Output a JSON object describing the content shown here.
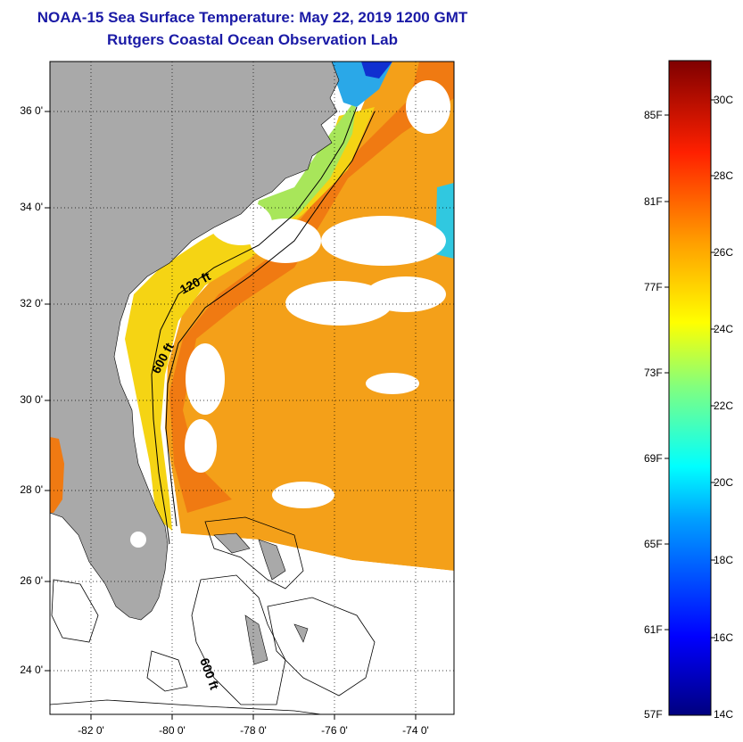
{
  "title": "NOAA-15 Sea Surface Temperature:  May 22, 2019 1200 GMT",
  "subtitle": "Rutgers Coastal Ocean Observation Lab",
  "map": {
    "lat_ticks": [
      "36 0'",
      "34 0'",
      "32 0'",
      "30 0'",
      "28 0'",
      "26 0'",
      "24 0'"
    ],
    "lon_ticks": [
      "-82 0'",
      "-80 0'",
      "-78 0'",
      "-76 0'",
      "-74 0'"
    ],
    "contours": [
      "120 ft",
      "600 ft",
      "600 ft"
    ],
    "colors": {
      "land": "#a9a9a9",
      "no_data": "#ffffff",
      "warm_sst": "#f4a019",
      "shelf_sst": "#f5d414"
    }
  },
  "colorbar": {
    "fahrenheit": [
      "85F",
      "81F",
      "77F",
      "73F",
      "69F",
      "65F",
      "61F",
      "57F"
    ],
    "celsius": [
      "30C",
      "28C",
      "26C",
      "24C",
      "22C",
      "20C",
      "18C",
      "16C",
      "14C"
    ]
  }
}
